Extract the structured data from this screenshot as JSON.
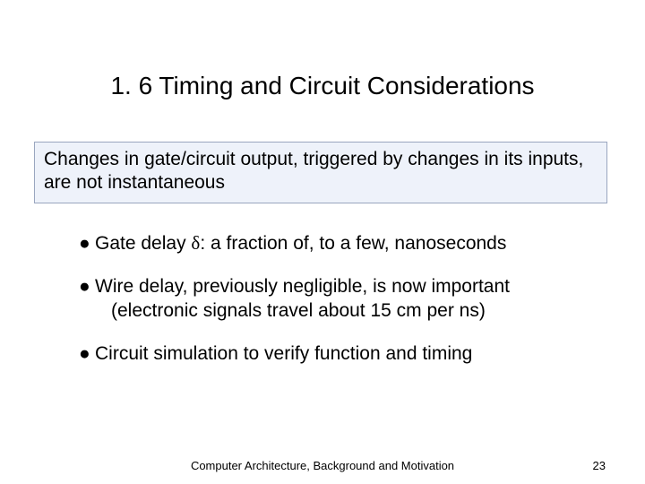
{
  "title": "1. 6  Timing and Circuit Considerations",
  "callout": "Changes in gate/circuit output, triggered by changes in its inputs, are not instantaneous",
  "bullets": [
    {
      "pre": "Gate delay ",
      "sym": "δ",
      "post": ": a fraction of, to a few, nanoseconds"
    },
    {
      "text": "Wire delay, previously negligible, is now important",
      "sub": "(electronic signals travel about 15 cm per ns)"
    },
    {
      "text": "Circuit simulation to verify function and timing"
    }
  ],
  "footer": {
    "center": "Computer Architecture, Background and Motivation",
    "page": "23"
  },
  "style": {
    "background": "#ffffff",
    "callout_bg": "#eef2fa",
    "callout_border": "#9aa6bf",
    "title_fontsize": 28,
    "body_fontsize": 21,
    "footer_fontsize": 13,
    "bullet_glyph": "●"
  }
}
